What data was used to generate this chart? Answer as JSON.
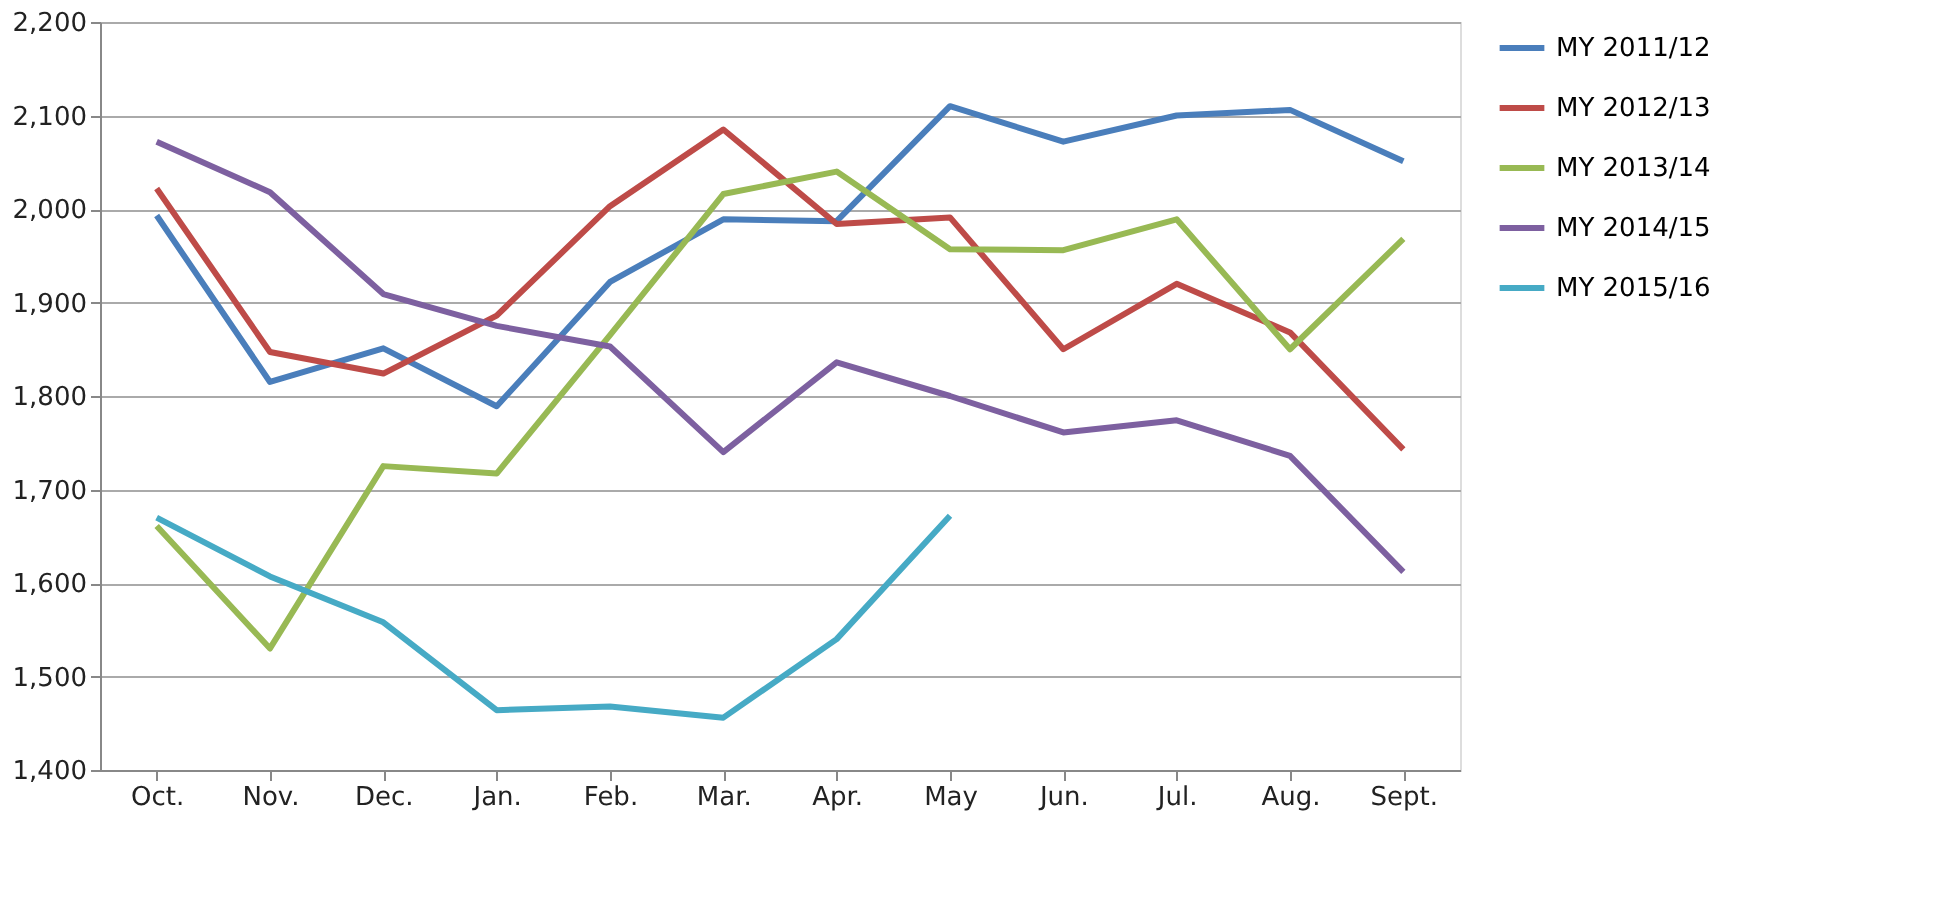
{
  "chart_data": {
    "type": "line",
    "categories": [
      "Oct.",
      "Nov.",
      "Dec.",
      "Jan.",
      "Feb.",
      "Mar.",
      "Apr.",
      "May",
      "Jun.",
      "Jul.",
      "Aug.",
      "Sept."
    ],
    "series": [
      {
        "name": "MY 2011/12",
        "color": "#4a7ebb",
        "values": [
          1993,
          1815,
          1851,
          1789,
          1922,
          1989,
          1987,
          2110,
          2072,
          2100,
          2106,
          2051
        ]
      },
      {
        "name": "MY 2012/13",
        "color": "#be4b48",
        "values": [
          2022,
          1847,
          1824,
          1886,
          2003,
          2085,
          1984,
          1991,
          1850,
          1920,
          1868,
          1743
        ]
      },
      {
        "name": "MY 2013/14",
        "color": "#98b954",
        "values": [
          1661,
          1530,
          1725,
          1717,
          1865,
          2016,
          2040,
          1957,
          1956,
          1989,
          1850,
          1968
        ]
      },
      {
        "name": "MY 2014/15",
        "color": "#7d60a0",
        "values": [
          2072,
          2018,
          1909,
          1875,
          1853,
          1740,
          1836,
          1800,
          1761,
          1774,
          1736,
          1612
        ]
      },
      {
        "name": "MY 2015/16",
        "color": "#46aac5",
        "values": [
          1670,
          1607,
          1558,
          1464,
          1468,
          1456,
          1540,
          1672,
          null,
          null,
          null,
          null
        ]
      }
    ],
    "ylim": [
      1400,
      2200
    ],
    "yticks": [
      {
        "value": 1400,
        "label": "1,400"
      },
      {
        "value": 1500,
        "label": "1,500"
      },
      {
        "value": 1600,
        "label": "1,600"
      },
      {
        "value": 1700,
        "label": "1,700"
      },
      {
        "value": 1800,
        "label": "1,800"
      },
      {
        "value": 1900,
        "label": "1,900"
      },
      {
        "value": 2000,
        "label": "2,000"
      },
      {
        "value": 2100,
        "label": "2,100"
      },
      {
        "value": 2200,
        "label": "2,200"
      }
    ],
    "grid": "y",
    "legend": "right",
    "marker": "none",
    "line_style": "solid"
  }
}
